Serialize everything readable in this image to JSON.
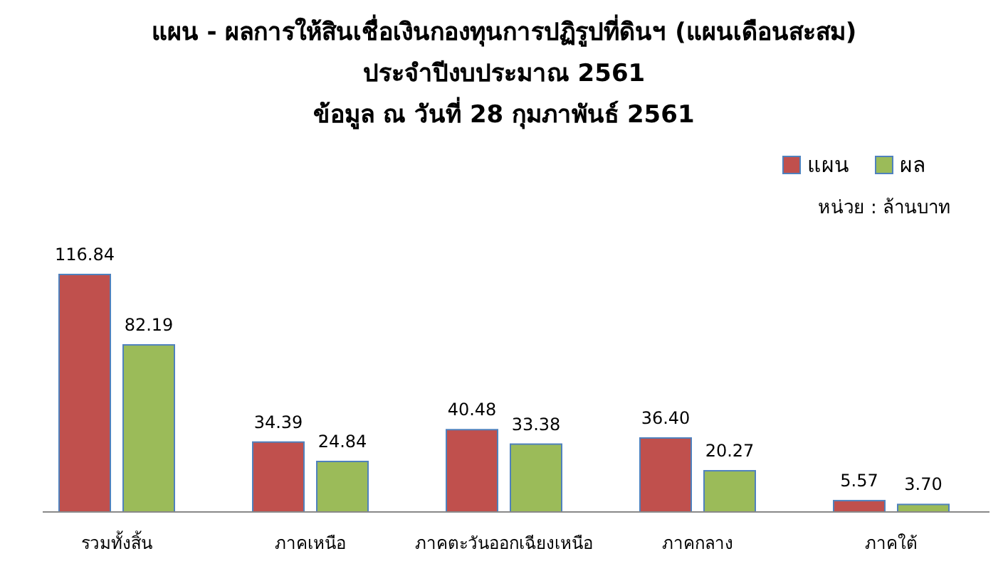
{
  "chart_data": {
    "type": "bar",
    "title": "แผน - ผลการให้สินเชื่อเงินกองทุนการปฏิรูปที่ดินฯ (แผนเดือนสะสม)\nประจำปีงบประมาณ 2561\nข้อมูล ณ วันที่ 28 กุมภาพันธ์ 2561",
    "categories": [
      "รวมทั้งสิ้น",
      "ภาคเหนือ",
      "ภาคตะวันออกเฉียงเหนือ",
      "ภาคกลาง",
      "ภาคใต้"
    ],
    "series": [
      {
        "name": "แผน",
        "color": "#c0504d",
        "values": [
          116.84,
          34.39,
          40.48,
          36.4,
          5.57
        ],
        "value_labels": [
          "116.84",
          "34.39",
          "40.48",
          "36.40",
          "5.57"
        ]
      },
      {
        "name": "ผล",
        "color": "#9bbb59",
        "values": [
          82.19,
          24.84,
          33.38,
          20.27,
          3.7
        ],
        "value_labels": [
          "82.19",
          "24.84",
          "33.38",
          "20.27",
          "3.70"
        ]
      }
    ],
    "annotations": [
      "หน่วย : ล้านบาท"
    ],
    "legend": "top right"
  }
}
